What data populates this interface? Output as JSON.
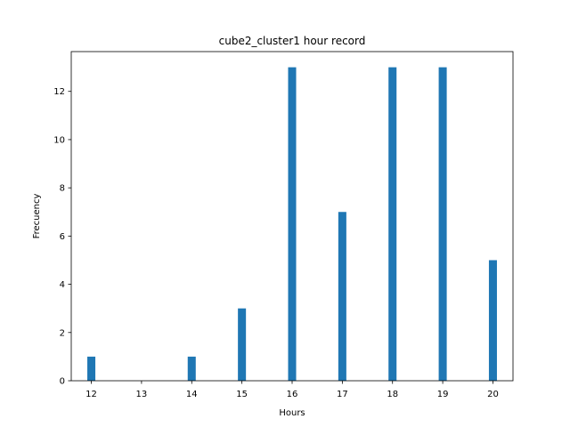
{
  "chart_data": {
    "type": "bar",
    "title": "cube2_cluster1 hour record",
    "xlabel": "Hours",
    "ylabel": "Frecuency",
    "x": [
      12,
      14,
      15,
      16,
      17,
      18,
      19,
      20
    ],
    "values": [
      1,
      1,
      3,
      13,
      7,
      13,
      13,
      5
    ],
    "xticks": [
      12,
      13,
      14,
      15,
      16,
      17,
      18,
      19,
      20
    ],
    "yticks": [
      0,
      2,
      4,
      6,
      8,
      10,
      12
    ],
    "xlim": [
      11.6,
      20.4
    ],
    "ylim": [
      0,
      13.65
    ],
    "bar_width": 0.16,
    "bar_color": "#1f77b4",
    "grid": false,
    "legend": "none"
  }
}
